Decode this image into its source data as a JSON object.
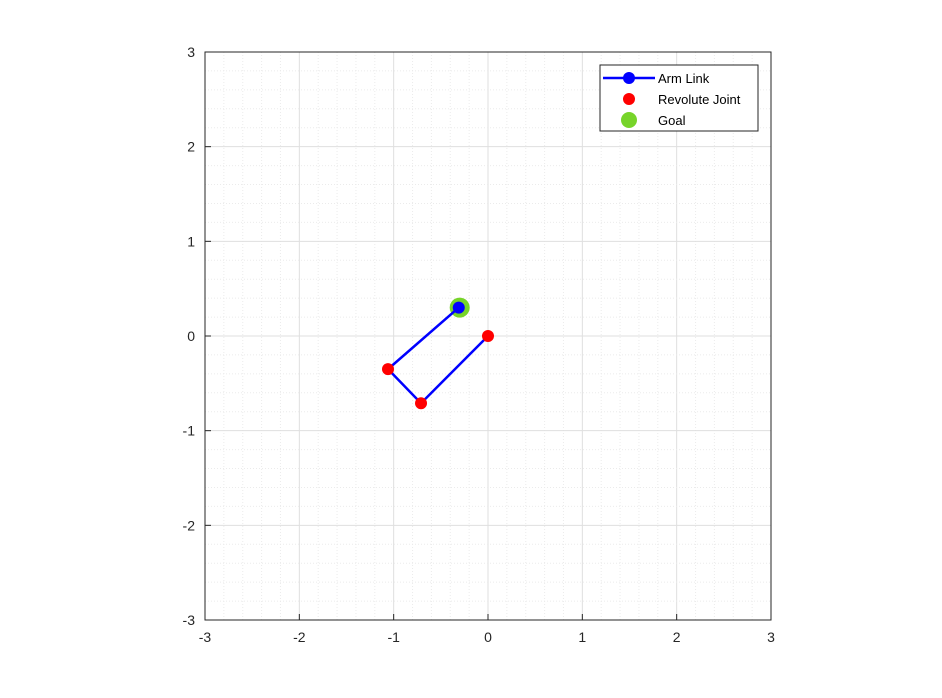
{
  "chart_data": {
    "type": "scatter",
    "xlim": [
      -3,
      3
    ],
    "ylim": [
      -3,
      3
    ],
    "xticks": [
      -3,
      -2,
      -1,
      0,
      1,
      2,
      3
    ],
    "yticks": [
      -3,
      -2,
      -1,
      0,
      1,
      2,
      3
    ],
    "xtick_labels": [
      "-3",
      "-2",
      "-1",
      "0",
      "1",
      "2",
      "3"
    ],
    "ytick_labels": [
      "-3",
      "-2",
      "-1",
      "0",
      "1",
      "2",
      "3"
    ],
    "minor_step": 0.2,
    "grid": true,
    "minor_grid": true,
    "legend_position": "top-right",
    "series": [
      {
        "name": "Arm Link",
        "style": "line-with-markers",
        "color": "#0000ff",
        "x": [
          0,
          -0.71,
          -1.06,
          -0.31
        ],
        "y": [
          0,
          -0.71,
          -0.35,
          0.3
        ]
      },
      {
        "name": "Revolute Joint",
        "style": "markers",
        "color": "#ff0000",
        "x": [
          0,
          -0.71,
          -1.06
        ],
        "y": [
          0,
          -0.71,
          -0.35
        ]
      },
      {
        "name": "Goal",
        "style": "markers",
        "color": "#77d42a",
        "x": [
          -0.3
        ],
        "y": [
          0.3
        ]
      }
    ]
  }
}
